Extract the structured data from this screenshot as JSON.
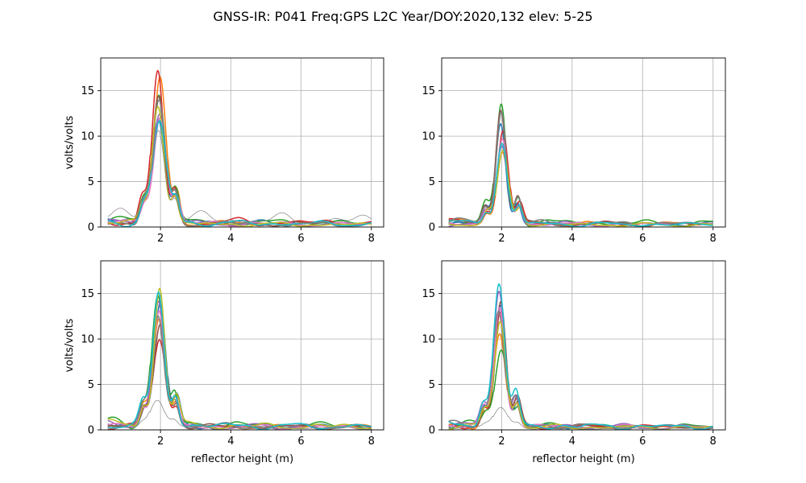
{
  "figure": {
    "title": "GNSS-IR: P041 Freq:GPS L2C Year/DOY:2020,132 elev: 5-25"
  },
  "chart_data": [
    {
      "type": "line",
      "panel": "top-left",
      "xlabel": "",
      "ylabel": "volts/volts",
      "xlim": [
        0.3,
        8.35
      ],
      "ylim": [
        0,
        18.6
      ],
      "xticks": [
        2,
        4,
        6,
        8
      ],
      "yticks": [
        0,
        5,
        10,
        15
      ],
      "grid": true,
      "peak_x": 1.95,
      "series": [
        {
          "color": "#1f77b4",
          "peak": 11.8,
          "width": 0.18,
          "base": 1.3
        },
        {
          "color": "#ff7f0e",
          "peak": 16.3,
          "width": 0.17,
          "base": 1.1
        },
        {
          "color": "#2ca02c",
          "peak": 14.5,
          "width": 0.18,
          "base": 1.5
        },
        {
          "color": "#d62728",
          "peak": 16.9,
          "width": 0.16,
          "base": 1.6
        },
        {
          "color": "#9467bd",
          "peak": 12.3,
          "width": 0.19,
          "base": 1.0
        },
        {
          "color": "#8c564b",
          "peak": 14.2,
          "width": 0.17,
          "base": 1.2
        },
        {
          "color": "#e377c2",
          "peak": 12.0,
          "width": 0.18,
          "base": 1.1
        },
        {
          "color": "#7f7f7f",
          "peak": 13.8,
          "width": 0.18,
          "base": 1.0
        },
        {
          "color": "#bcbd22",
          "peak": 13.2,
          "width": 0.17,
          "base": 0.9
        },
        {
          "color": "#17becf",
          "peak": 11.5,
          "width": 0.19,
          "base": 1.2
        },
        {
          "color": "#808080",
          "peak": 10.4,
          "width": 0.18,
          "base": 2.5,
          "thin": true
        }
      ]
    },
    {
      "type": "line",
      "panel": "top-right",
      "xlabel": "",
      "ylabel": "",
      "xlim": [
        0.3,
        8.35
      ],
      "ylim": [
        0,
        18.6
      ],
      "xticks": [
        2,
        4,
        6,
        8
      ],
      "yticks": [
        0,
        5,
        10,
        15
      ],
      "grid": true,
      "peak_x": 2.0,
      "series": [
        {
          "color": "#1f77b4",
          "peak": 11.2,
          "width": 0.14,
          "base": 1.0
        },
        {
          "color": "#ff7f0e",
          "peak": 8.1,
          "width": 0.15,
          "base": 1.1
        },
        {
          "color": "#2ca02c",
          "peak": 13.3,
          "width": 0.14,
          "base": 1.4
        },
        {
          "color": "#d62728",
          "peak": 10.4,
          "width": 0.15,
          "base": 1.0
        },
        {
          "color": "#9467bd",
          "peak": 8.8,
          "width": 0.15,
          "base": 0.9
        },
        {
          "color": "#8c564b",
          "peak": 12.8,
          "width": 0.14,
          "base": 1.1
        },
        {
          "color": "#e377c2",
          "peak": 9.5,
          "width": 0.15,
          "base": 0.9
        },
        {
          "color": "#7f7f7f",
          "peak": 12.6,
          "width": 0.14,
          "base": 1.2
        },
        {
          "color": "#bcbd22",
          "peak": 8.3,
          "width": 0.16,
          "base": 0.8
        },
        {
          "color": "#17becf",
          "peak": 9.1,
          "width": 0.15,
          "base": 0.9
        }
      ]
    },
    {
      "type": "line",
      "panel": "bottom-left",
      "xlabel": "reflector height (m)",
      "ylabel": "volts/volts",
      "xlim": [
        0.3,
        8.35
      ],
      "ylim": [
        0,
        18.6
      ],
      "xticks": [
        2,
        4,
        6,
        8
      ],
      "yticks": [
        0,
        5,
        10,
        15
      ],
      "grid": true,
      "peak_x": 1.95,
      "series": [
        {
          "color": "#1f77b4",
          "peak": 13.8,
          "width": 0.16,
          "base": 1.2
        },
        {
          "color": "#ff7f0e",
          "peak": 12.1,
          "width": 0.17,
          "base": 1.1
        },
        {
          "color": "#2ca02c",
          "peak": 14.6,
          "width": 0.17,
          "base": 1.6
        },
        {
          "color": "#d62728",
          "peak": 9.8,
          "width": 0.18,
          "base": 1.0
        },
        {
          "color": "#9467bd",
          "peak": 14.0,
          "width": 0.16,
          "base": 1.1
        },
        {
          "color": "#8c564b",
          "peak": 11.4,
          "width": 0.17,
          "base": 1.0
        },
        {
          "color": "#e377c2",
          "peak": 13.0,
          "width": 0.16,
          "base": 1.0
        },
        {
          "color": "#7f7f7f",
          "peak": 12.4,
          "width": 0.17,
          "base": 1.2
        },
        {
          "color": "#bcbd22",
          "peak": 15.4,
          "width": 0.15,
          "base": 1.3
        },
        {
          "color": "#17becf",
          "peak": 15.0,
          "width": 0.16,
          "base": 1.3
        },
        {
          "color": "#808080",
          "peak": 3.2,
          "width": 0.2,
          "base": 0.7,
          "thin": true
        }
      ]
    },
    {
      "type": "line",
      "panel": "bottom-right",
      "xlabel": "reflector height (m)",
      "ylabel": "",
      "xlim": [
        0.3,
        8.35
      ],
      "ylim": [
        0,
        18.6
      ],
      "xticks": [
        2,
        4,
        6,
        8
      ],
      "yticks": [
        0,
        5,
        10,
        15
      ],
      "grid": true,
      "peak_x": 1.95,
      "series": [
        {
          "color": "#1f77b4",
          "peak": 13.6,
          "width": 0.15,
          "base": 1.0
        },
        {
          "color": "#ff7f0e",
          "peak": 10.4,
          "width": 0.16,
          "base": 1.0
        },
        {
          "color": "#2ca02c",
          "peak": 8.7,
          "width": 0.17,
          "base": 1.2
        },
        {
          "color": "#d62728",
          "peak": 12.8,
          "width": 0.15,
          "base": 1.1
        },
        {
          "color": "#9467bd",
          "peak": 15.2,
          "width": 0.15,
          "base": 1.1
        },
        {
          "color": "#8c564b",
          "peak": 14.0,
          "width": 0.15,
          "base": 1.0
        },
        {
          "color": "#e377c2",
          "peak": 13.3,
          "width": 0.15,
          "base": 1.0
        },
        {
          "color": "#7f7f7f",
          "peak": 12.9,
          "width": 0.16,
          "base": 1.2
        },
        {
          "color": "#bcbd22",
          "peak": 11.8,
          "width": 0.16,
          "base": 0.9
        },
        {
          "color": "#17becf",
          "peak": 16.0,
          "width": 0.16,
          "base": 1.2
        },
        {
          "color": "#808080",
          "peak": 2.4,
          "width": 0.2,
          "base": 0.5,
          "thin": true
        }
      ]
    }
  ]
}
